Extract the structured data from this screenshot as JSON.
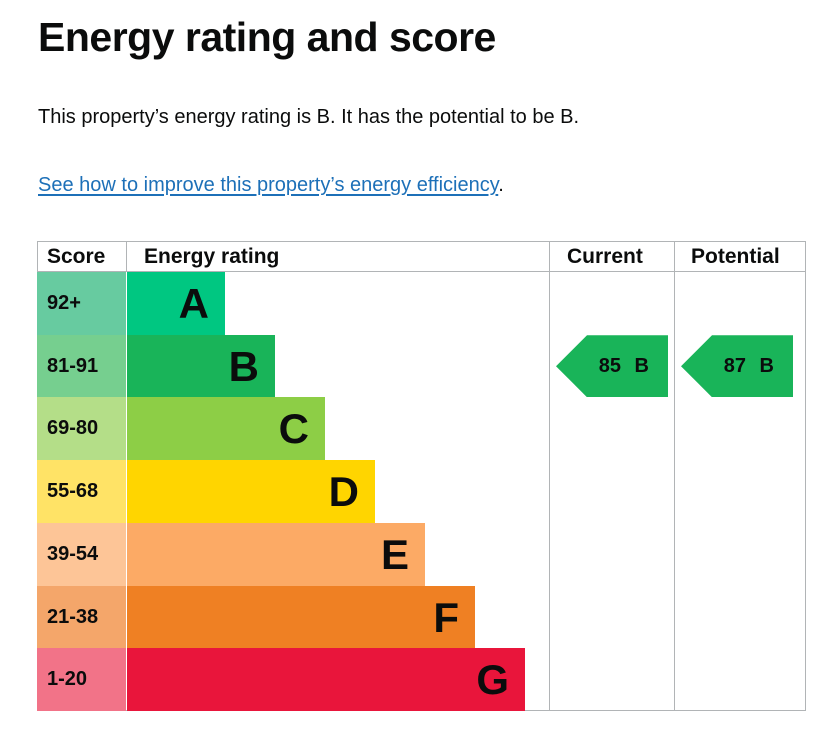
{
  "page": {
    "title": "Energy rating and score",
    "summary": "This property’s energy rating is B. It has the potential to be B.",
    "improve_link": "See how to improve this property’s energy efficiency",
    "improve_link_suffix": "."
  },
  "chart": {
    "headers": {
      "score": "Score",
      "rating": "Energy rating",
      "current": "Current",
      "potential": "Potential"
    },
    "bands": [
      {
        "letter": "A",
        "range": "92+",
        "color": "#00c781",
        "score_bg": "#67cba0"
      },
      {
        "letter": "B",
        "range": "81-91",
        "color": "#19b459",
        "score_bg": "#76cf8f"
      },
      {
        "letter": "C",
        "range": "69-80",
        "color": "#8dce46",
        "score_bg": "#b4de88"
      },
      {
        "letter": "D",
        "range": "55-68",
        "color": "#ffd500",
        "score_bg": "#ffe366"
      },
      {
        "letter": "E",
        "range": "39-54",
        "color": "#fcaa65",
        "score_bg": "#fdc597"
      },
      {
        "letter": "F",
        "range": "21-38",
        "color": "#ef8023",
        "score_bg": "#f4a66a"
      },
      {
        "letter": "G",
        "range": "1-20",
        "color": "#e9153b",
        "score_bg": "#f27388"
      }
    ],
    "current": {
      "label": "85 B",
      "score": 85,
      "rating": "B",
      "color": "#19b459"
    },
    "potential": {
      "label": "87 B",
      "score": 87,
      "rating": "B",
      "color": "#19b459"
    }
  }
}
